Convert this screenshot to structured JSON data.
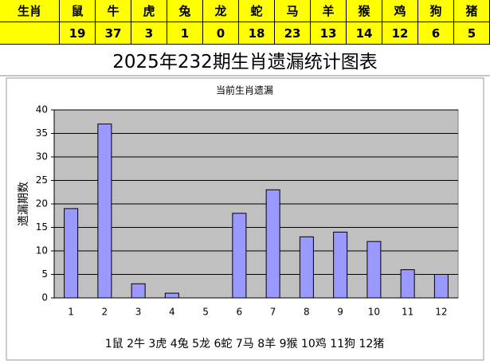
{
  "table": {
    "header": [
      "生肖",
      "鼠",
      "牛",
      "虎",
      "兔",
      "龙",
      "蛇",
      "马",
      "羊",
      "猴",
      "鸡",
      "狗",
      "猪"
    ]
  },
  "title": "2025年232期生肖遗漏统计图表",
  "chart_data": {
    "type": "bar",
    "title": "当前生肖遗漏",
    "y_label": "遗漏期数",
    "categories": [
      "1",
      "2",
      "3",
      "4",
      "5",
      "6",
      "7",
      "8",
      "9",
      "10",
      "11",
      "12"
    ],
    "values": [
      19,
      37,
      3,
      1,
      0,
      18,
      23,
      13,
      14,
      12,
      6,
      5
    ],
    "color": "#9999ff",
    "ylim": [
      0,
      40
    ],
    "yticks": [
      0,
      5,
      10,
      15,
      20,
      25,
      30,
      35,
      40
    ],
    "grid": true,
    "legend_text": "1鼠 2牛 3虎 4兔 5龙 6蛇 7马 8羊 9猴 10鸡 11狗 12猪"
  }
}
